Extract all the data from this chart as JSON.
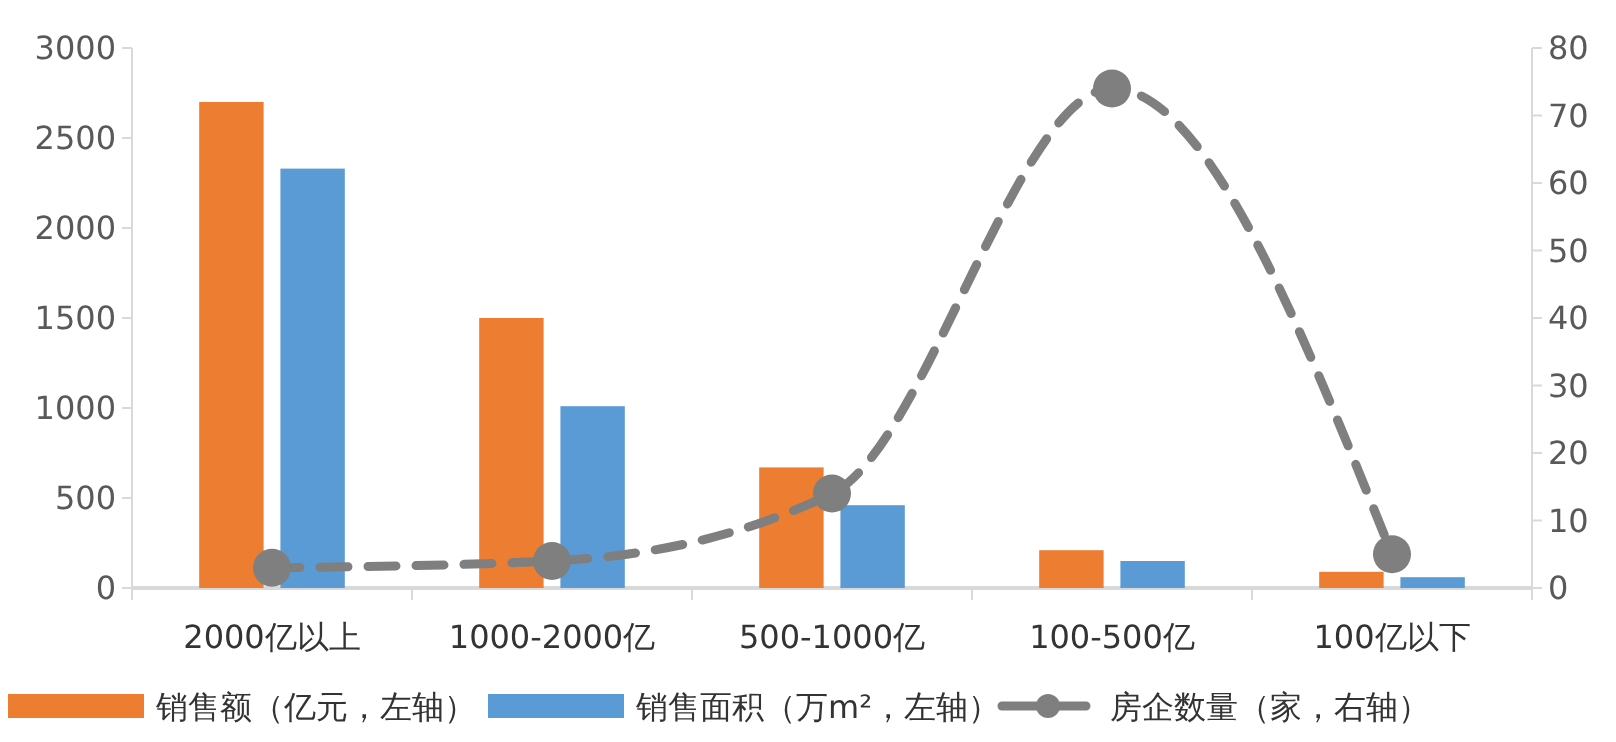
{
  "chart_data": {
    "type": "bar",
    "categories": [
      "2000亿以上",
      "1000-2000亿",
      "500-1000亿",
      "100-500亿",
      "100亿以下"
    ],
    "series": [
      {
        "name": "销售额（亿元，左轴）",
        "color": "#ed7d31",
        "values": [
          2700,
          1500,
          670,
          210,
          90
        ]
      },
      {
        "name": "销售面积（万m²，左轴）",
        "color": "#5b9bd5",
        "values": [
          2330,
          1010,
          460,
          150,
          60
        ]
      },
      {
        "name": "房企数量（家，右轴）",
        "type": "line",
        "axis": "y2",
        "color": "#7f7f7f",
        "values": [
          3,
          4,
          14,
          74,
          5
        ],
        "marker": "circle",
        "line_style": "dashed"
      }
    ],
    "ylim": [
      0,
      3000
    ],
    "yticks": [
      0,
      500,
      1000,
      1500,
      2000,
      2500,
      3000
    ],
    "y2lim": [
      0,
      80
    ],
    "y2ticks": [
      0,
      10,
      20,
      30,
      40,
      50,
      60,
      70,
      80
    ],
    "grid": false,
    "legend": "bottom"
  }
}
